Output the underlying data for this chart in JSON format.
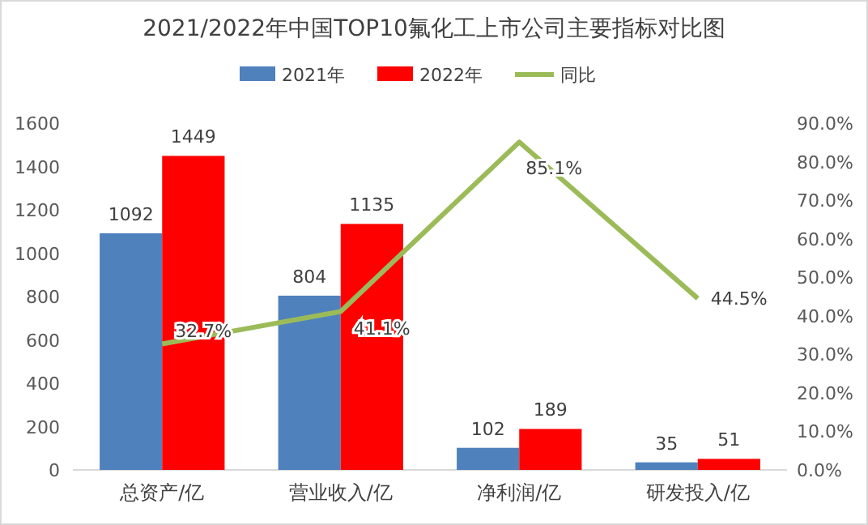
{
  "chart_data": {
    "type": "bar",
    "title": "2021/2022年中国TOP10氟化工上市公司主要指标对比图",
    "categories": [
      "总资产/亿",
      "营业收入/亿",
      "净利润/亿",
      "研发投入/亿"
    ],
    "series": [
      {
        "name": "2021年",
        "color": "#4f81bd",
        "values": [
          1092,
          804,
          102,
          35
        ]
      },
      {
        "name": "2022年",
        "color": "#ff0000",
        "values": [
          1449,
          1135,
          189,
          51
        ]
      },
      {
        "name": "同比",
        "type": "line",
        "axis": "y2",
        "color": "#9bbb59",
        "values": [
          32.7,
          41.1,
          85.1,
          44.5
        ],
        "value_labels": [
          "32.7%",
          "41.1%",
          "85.1%",
          "44.5%"
        ]
      }
    ],
    "data_labels": true,
    "ylim": [
      0,
      1600
    ],
    "yticks": [
      0,
      200,
      400,
      600,
      800,
      1000,
      1200,
      1400,
      1600
    ],
    "y2lim": [
      0,
      90
    ],
    "y2ticks": [
      {
        "value": 0,
        "label": "0.0%"
      },
      {
        "value": 10,
        "label": "10.0%"
      },
      {
        "value": 20,
        "label": "20.0%"
      },
      {
        "value": 30,
        "label": "30.0%"
      },
      {
        "value": 40,
        "label": "40.0%"
      },
      {
        "value": 50,
        "label": "50.0%"
      },
      {
        "value": 60,
        "label": "60.0%"
      },
      {
        "value": 70,
        "label": "70.0%"
      },
      {
        "value": 80,
        "label": "80.0%"
      },
      {
        "value": 90,
        "label": "90.0%"
      }
    ],
    "grid": false,
    "legend": "top",
    "marker": "none",
    "line_style": "solid"
  }
}
